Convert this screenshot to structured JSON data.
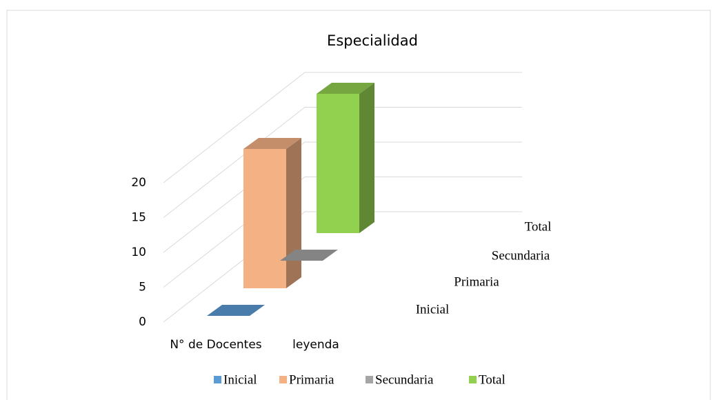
{
  "chart_data": {
    "type": "bar3d",
    "title": "Especialidad",
    "categories": [
      "N° de Docentes",
      "leyenda"
    ],
    "series": [
      {
        "name": "Inicial",
        "color": "#5b9bd5",
        "values": [
          0,
          null
        ]
      },
      {
        "name": "Primaria",
        "color": "#f4b183",
        "values": [
          20,
          null
        ]
      },
      {
        "name": "Secundaria",
        "color": "#a5a5a5",
        "values": [
          0,
          null
        ]
      },
      {
        "name": "Total",
        "color": "#92d050",
        "values": [
          20,
          null
        ]
      }
    ],
    "ylim": [
      0,
      20
    ],
    "yticks": [
      0,
      5,
      10,
      15,
      20
    ],
    "grid": true,
    "legend": "bottom"
  }
}
